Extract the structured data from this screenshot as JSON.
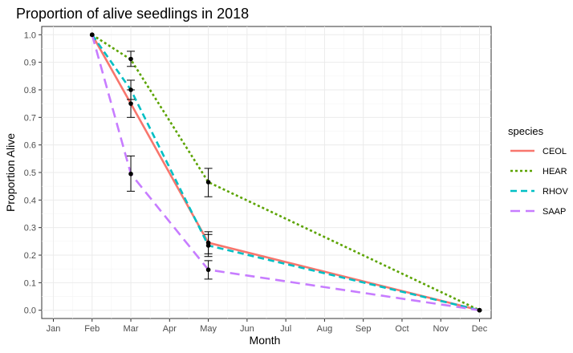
{
  "chart_data": {
    "type": "line",
    "title": "Proportion of alive seedlings in 2018",
    "xlabel": "Month",
    "ylabel": "Proportion Alive",
    "x_ticks": [
      "Jan",
      "Feb",
      "Mar",
      "Apr",
      "May",
      "Jun",
      "Jul",
      "Aug",
      "Sep",
      "Oct",
      "Nov",
      "Dec"
    ],
    "y_ticks": [
      "0.0",
      "0.1",
      "0.2",
      "0.3",
      "0.4",
      "0.5",
      "0.6",
      "0.7",
      "0.8",
      "0.9",
      "1.0"
    ],
    "ylim": [
      -0.03,
      1.03
    ],
    "x_points": [
      "Feb",
      "Mar",
      "May",
      "Dec"
    ],
    "legend_title": "species",
    "legend_position": "right",
    "grid": true,
    "series": [
      {
        "name": "CEOL",
        "color": "#F8766D",
        "dash": "solid",
        "line": [
          1.0,
          0.75,
          0.245,
          0.0
        ],
        "points": [
          1.0,
          0.75,
          0.245,
          0.0
        ],
        "err_low": [
          null,
          0.7,
          0.205,
          null
        ],
        "err_high": [
          null,
          0.8,
          0.285,
          null
        ]
      },
      {
        "name": "HEAR",
        "color": "#5BA300",
        "dash": "dotted",
        "line": [
          1.0,
          0.91,
          0.465,
          0.0
        ],
        "points": [
          1.0,
          0.912,
          0.465,
          0.0
        ],
        "err_low": [
          null,
          0.885,
          0.412,
          null
        ],
        "err_high": [
          null,
          0.94,
          0.515,
          null
        ]
      },
      {
        "name": "RHOV",
        "color": "#00BFC4",
        "dash": "dashed",
        "line": [
          1.0,
          0.8,
          0.235,
          0.0
        ],
        "points": [
          1.0,
          0.8,
          0.235,
          0.0
        ],
        "err_low": [
          null,
          0.765,
          0.195,
          null
        ],
        "err_high": [
          null,
          0.835,
          0.275,
          null
        ]
      },
      {
        "name": "SAAP",
        "color": "#C77CFF",
        "dash": "longdash",
        "line": [
          1.0,
          0.495,
          0.147,
          0.0
        ],
        "points": [
          1.0,
          0.495,
          0.147,
          0.0
        ],
        "err_low": [
          null,
          0.432,
          0.113,
          null
        ],
        "err_high": [
          null,
          0.56,
          0.18,
          null
        ]
      }
    ]
  }
}
